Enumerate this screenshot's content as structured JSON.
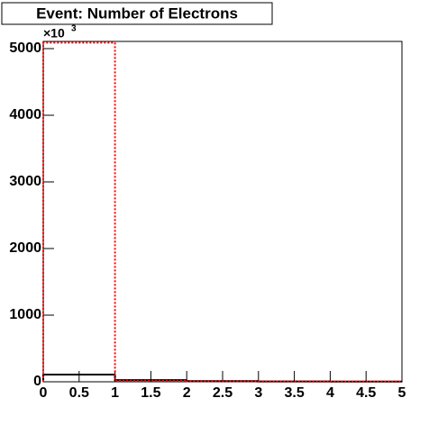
{
  "chart_data": {
    "type": "histogram",
    "title": "Event: Number of Electrons",
    "y_multiplier": "×10",
    "y_multiplier_exp": "3",
    "bins": [
      0,
      1,
      2,
      3,
      4,
      5
    ],
    "series": [
      {
        "color": "#000000",
        "line_style": "solid",
        "values": [
          108,
          25,
          10,
          5,
          3
        ]
      },
      {
        "color": "#ff0000",
        "line_style": "dotted",
        "values": [
          5090,
          15,
          5,
          2,
          1
        ]
      }
    ],
    "xlim": [
      0,
      5
    ],
    "xticks": [
      0,
      0.5,
      1,
      1.5,
      2,
      2.5,
      3,
      3.5,
      4,
      4.5,
      5
    ],
    "ylim": [
      0,
      5108
    ],
    "yticks": [
      0,
      1000,
      2000,
      3000,
      4000,
      5000
    ],
    "grid": false
  }
}
